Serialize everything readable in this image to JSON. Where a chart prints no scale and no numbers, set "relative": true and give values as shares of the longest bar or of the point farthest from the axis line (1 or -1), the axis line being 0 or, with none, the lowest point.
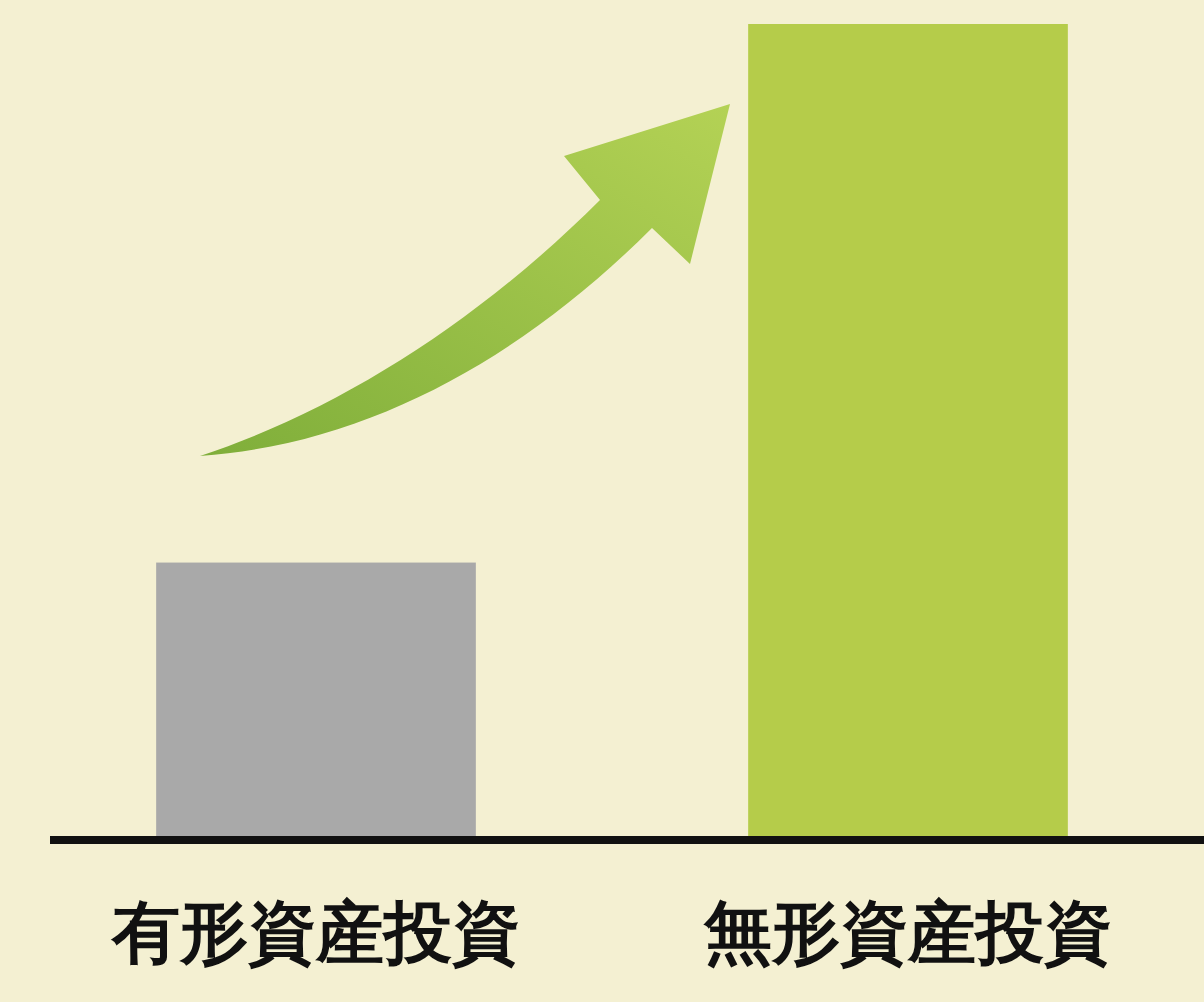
{
  "chart_data": {
    "type": "bar",
    "relative": true,
    "categories": [
      "有形資産投資",
      "無形資産投資"
    ],
    "values": [
      0.34,
      1
    ],
    "colors": [
      "#a9a9a9",
      "#b5cc4a"
    ]
  }
}
